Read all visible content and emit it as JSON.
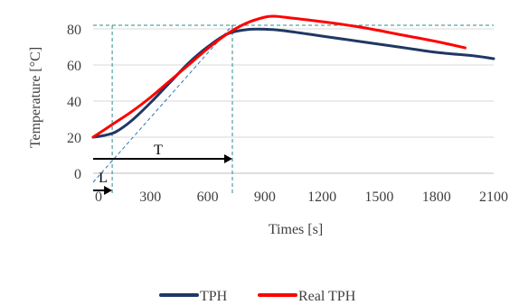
{
  "chart_data": {
    "type": "line",
    "title": "",
    "xlabel": "Times [s]",
    "ylabel": "Temperature [°C]",
    "xlim": [
      0,
      2100
    ],
    "ylim": [
      0,
      90
    ],
    "x_ticks": [
      0,
      300,
      600,
      900,
      1200,
      1500,
      1800,
      2100
    ],
    "y_ticks": [
      0,
      20,
      40,
      60,
      80
    ],
    "grid": "horizontal",
    "legend_position": "bottom",
    "series": [
      {
        "name": "TPH",
        "color": "#1f3864",
        "x": [
          0,
          60,
          120,
          200,
          300,
          400,
          500,
          600,
          700,
          800,
          900,
          1000,
          1200,
          1400,
          1600,
          1800,
          2000,
          2100
        ],
        "y": [
          20,
          21,
          23,
          29,
          39,
          50,
          61,
          70,
          77,
          79.5,
          79.8,
          79,
          76,
          73,
          70,
          67,
          65,
          63.5
        ]
      },
      {
        "name": "Real TPH",
        "color": "#ff0000",
        "x": [
          0,
          100,
          200,
          300,
          400,
          500,
          600,
          700,
          800,
          900,
          950,
          1000,
          1200,
          1400,
          1600,
          1800,
          1950
        ],
        "y": [
          20,
          27,
          34,
          42,
          51,
          60,
          69,
          77,
          83,
          86.5,
          87,
          86.5,
          84,
          81,
          77,
          73,
          69.5
        ]
      }
    ],
    "annotations": {
      "L_label": "L",
      "T_label": "T",
      "L_value": 100,
      "T_value": 730,
      "ref_level": 82,
      "tangent": {
        "x": [
          0,
          730
        ],
        "y": [
          -5,
          82
        ]
      },
      "tangent_color": "#2e75b6",
      "guide_color": "#2e8b8b"
    }
  }
}
